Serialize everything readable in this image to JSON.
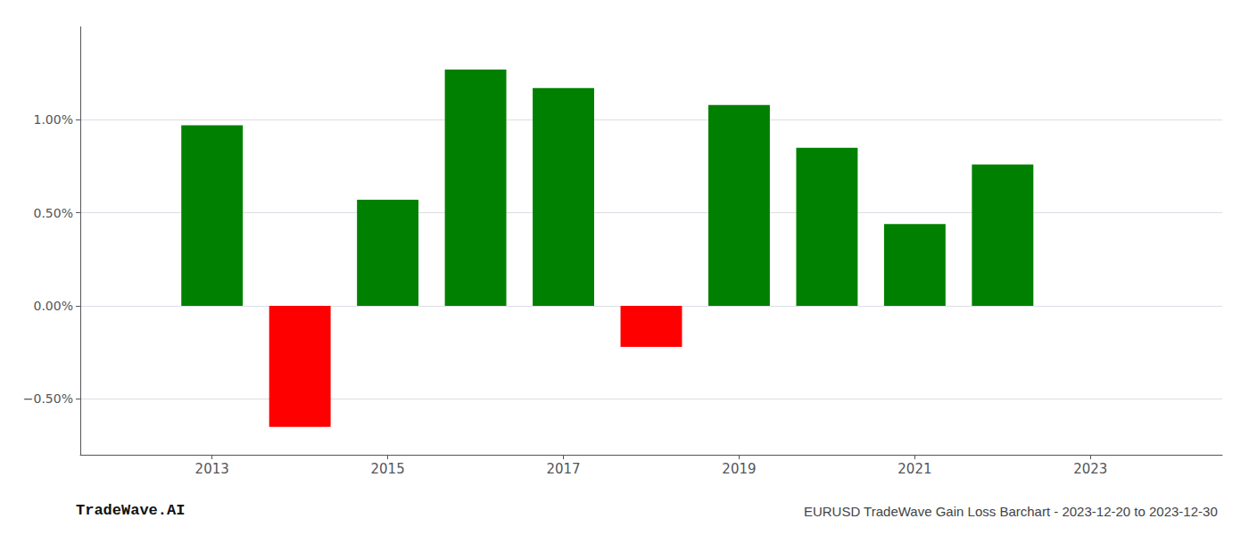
{
  "chart_data": {
    "type": "bar",
    "title": "EURUSD TradeWave Gain Loss Barchart - 2023-12-20 to 2023-12-30",
    "annotations": [
      {
        "text": "TradeWave.AI"
      }
    ],
    "x": [
      2013,
      2014,
      2015,
      2016,
      2017,
      2018,
      2019,
      2020,
      2021,
      2022
    ],
    "values": [
      0.97,
      -0.65,
      0.57,
      1.27,
      1.17,
      -0.22,
      1.08,
      0.85,
      0.44,
      0.76
    ],
    "colors": [
      "#008000",
      "#ff0000",
      "#008000",
      "#008000",
      "#008000",
      "#ff0000",
      "#008000",
      "#008000",
      "#008000",
      "#008000"
    ],
    "xlim": [
      2011.5,
      2024.5
    ],
    "xticks": [
      2013,
      2015,
      2017,
      2019,
      2021,
      2023
    ],
    "ylim": [
      -0.8,
      1.5
    ],
    "yticks": [
      {
        "value": -0.5,
        "label": "−0.50%"
      },
      {
        "value": 0,
        "label": "0.00%"
      },
      {
        "value": 0.5,
        "label": "0.50%"
      },
      {
        "value": 1,
        "label": "1.00%"
      }
    ],
    "grid": true
  }
}
